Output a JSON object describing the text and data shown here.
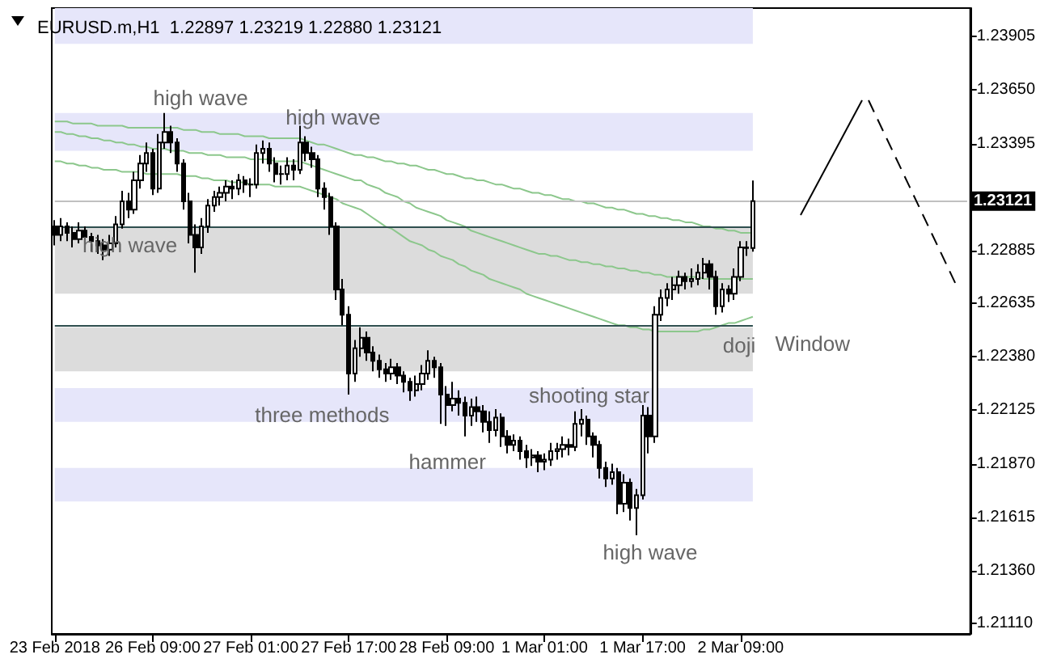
{
  "chart_data": {
    "type": "candlestick",
    "title": "EURUSD.m,H1  1.22897 1.23219 1.22880 1.23121",
    "categories": [
      "23 Feb 2018",
      null,
      null,
      null,
      null,
      null,
      null,
      null,
      null,
      null,
      null,
      null,
      null,
      null,
      null,
      null,
      "26 Feb 09:00",
      null,
      null,
      null,
      null,
      null,
      null,
      null,
      null,
      null,
      null,
      null,
      null,
      null,
      null,
      null,
      "27 Feb 01:00",
      null,
      null,
      null,
      null,
      null,
      null,
      null,
      null,
      null,
      null,
      null,
      null,
      null,
      null,
      null,
      "27 Feb 17:00",
      null,
      null,
      null,
      null,
      null,
      null,
      null,
      null,
      null,
      null,
      null,
      null,
      null,
      null,
      null,
      "28 Feb 09:00",
      null,
      null,
      null,
      null,
      null,
      null,
      null,
      null,
      null,
      null,
      null,
      null,
      null,
      null,
      null,
      "1 Mar 01:00",
      null,
      null,
      null,
      null,
      null,
      null,
      null,
      null,
      null,
      null,
      null,
      null,
      null,
      null,
      null,
      "1 Mar 17:00",
      null,
      null,
      null,
      null,
      null,
      null,
      null,
      null,
      null,
      null,
      null,
      null,
      null,
      null,
      null,
      "2 Mar 09:00",
      null,
      null,
      null,
      null,
      null,
      null,
      null,
      null,
      null,
      null,
      null,
      null,
      null,
      null,
      null,
      null,
      null,
      null,
      null,
      null,
      null,
      null,
      null,
      null,
      null,
      null,
      null,
      null,
      null,
      null,
      null,
      null,
      null,
      null,
      null,
      null,
      null
    ],
    "ohlc": [
      [
        1.23,
        1.2303,
        1.2291,
        1.2296
      ],
      [
        1.2296,
        1.2304,
        1.2293,
        1.23
      ],
      [
        1.23,
        1.2302,
        1.2293,
        1.2297
      ],
      [
        1.2297,
        1.23,
        1.229,
        1.2294
      ],
      [
        1.2294,
        1.2302,
        1.2292,
        1.2298
      ],
      [
        1.2298,
        1.23,
        1.2291,
        1.2295
      ],
      [
        1.2295,
        1.2297,
        1.2288,
        1.2293
      ],
      [
        1.2293,
        1.2296,
        1.2287,
        1.2291
      ],
      [
        1.2291,
        1.2294,
        1.2284,
        1.2289
      ],
      [
        1.2289,
        1.2296,
        1.2286,
        1.2292
      ],
      [
        1.2292,
        1.2305,
        1.229,
        1.2301
      ],
      [
        1.2301,
        1.2317,
        1.2299,
        1.2312
      ],
      [
        1.2312,
        1.2316,
        1.2304,
        1.2308
      ],
      [
        1.2308,
        1.2326,
        1.2306,
        1.2322
      ],
      [
        1.2322,
        1.2334,
        1.2318,
        1.233
      ],
      [
        1.233,
        1.234,
        1.2326,
        1.2335
      ],
      [
        1.2335,
        1.2337,
        1.2315,
        1.2318
      ],
      [
        1.2318,
        1.2344,
        1.2316,
        1.234
      ],
      [
        1.234,
        1.2354,
        1.2337,
        1.2345
      ],
      [
        1.2345,
        1.2348,
        1.2335,
        1.234
      ],
      [
        1.234,
        1.2342,
        1.2326,
        1.233
      ],
      [
        1.233,
        1.2332,
        1.2308,
        1.2312
      ],
      [
        1.2312,
        1.2316,
        1.2292,
        1.2296
      ],
      [
        1.2296,
        1.2301,
        1.2278,
        1.229
      ],
      [
        1.229,
        1.2304,
        1.2287,
        1.23
      ],
      [
        1.23,
        1.2313,
        1.2297,
        1.231
      ],
      [
        1.231,
        1.2317,
        1.2307,
        1.2314
      ],
      [
        1.2314,
        1.2319,
        1.231,
        1.2316
      ],
      [
        1.2316,
        1.2322,
        1.2312,
        1.2319
      ],
      [
        1.2319,
        1.2322,
        1.2313,
        1.2318
      ],
      [
        1.2318,
        1.2325,
        1.2315,
        1.2322
      ],
      [
        1.2322,
        1.2324,
        1.2316,
        1.232
      ],
      [
        1.232,
        1.2323,
        1.2314,
        1.232
      ],
      [
        1.232,
        1.2339,
        1.2318,
        1.2335
      ],
      [
        1.2335,
        1.2341,
        1.233,
        1.2337
      ],
      [
        1.2337,
        1.234,
        1.2326,
        1.233
      ],
      [
        1.233,
        1.2333,
        1.2321,
        1.2325
      ],
      [
        1.2325,
        1.2329,
        1.232,
        1.2325
      ],
      [
        1.2325,
        1.2333,
        1.2322,
        1.2329
      ],
      [
        1.2329,
        1.2332,
        1.2322,
        1.2327
      ],
      [
        1.2327,
        1.2348,
        1.2325,
        1.234
      ],
      [
        1.234,
        1.2343,
        1.2331,
        1.2335
      ],
      [
        1.2335,
        1.2338,
        1.2328,
        1.2332
      ],
      [
        1.2332,
        1.2334,
        1.2314,
        1.2318
      ],
      [
        1.2318,
        1.2321,
        1.2308,
        1.2314
      ],
      [
        1.2314,
        1.2316,
        1.2296,
        1.23
      ],
      [
        1.23,
        1.2302,
        1.2265,
        1.227
      ],
      [
        1.227,
        1.2275,
        1.2253,
        1.2258
      ],
      [
        1.2258,
        1.2262,
        1.222,
        1.223
      ],
      [
        1.223,
        1.2246,
        1.2226,
        1.2242
      ],
      [
        1.2242,
        1.2252,
        1.2238,
        1.2247
      ],
      [
        1.2247,
        1.225,
        1.2236,
        1.224
      ],
      [
        1.224,
        1.2243,
        1.2231,
        1.2236
      ],
      [
        1.2236,
        1.2239,
        1.2228,
        1.2232
      ],
      [
        1.2232,
        1.2235,
        1.2226,
        1.223
      ],
      [
        1.223,
        1.2237,
        1.2227,
        1.2233
      ],
      [
        1.2233,
        1.2235,
        1.2225,
        1.2229
      ],
      [
        1.2229,
        1.2231,
        1.2221,
        1.2226
      ],
      [
        1.2226,
        1.2228,
        1.2217,
        1.2222
      ],
      [
        1.2222,
        1.2229,
        1.2219,
        1.2225
      ],
      [
        1.2225,
        1.2234,
        1.2222,
        1.223
      ],
      [
        1.223,
        1.2241,
        1.2227,
        1.2236
      ],
      [
        1.2236,
        1.2238,
        1.2228,
        1.2233
      ],
      [
        1.2233,
        1.2235,
        1.2206,
        1.222
      ],
      [
        1.222,
        1.2224,
        1.2205,
        1.2215
      ],
      [
        1.2215,
        1.2226,
        1.2212,
        1.2218
      ],
      [
        1.2218,
        1.2222,
        1.221,
        1.2216
      ],
      [
        1.2216,
        1.2219,
        1.22,
        1.221
      ],
      [
        1.221,
        1.2218,
        1.2205,
        1.2214
      ],
      [
        1.2214,
        1.2219,
        1.2207,
        1.2212
      ],
      [
        1.2212,
        1.2215,
        1.2202,
        1.2207
      ],
      [
        1.2207,
        1.2212,
        1.2197,
        1.2203
      ],
      [
        1.2203,
        1.2213,
        1.22,
        1.2209
      ],
      [
        1.2209,
        1.2211,
        1.2195,
        1.22
      ],
      [
        1.22,
        1.2203,
        1.2192,
        1.2196
      ],
      [
        1.2196,
        1.2201,
        1.2193,
        1.2198
      ],
      [
        1.2198,
        1.22,
        1.2189,
        1.2193
      ],
      [
        1.2193,
        1.2196,
        1.2185,
        1.219
      ],
      [
        1.219,
        1.2194,
        1.2186,
        1.2191
      ],
      [
        1.2191,
        1.2193,
        1.2183,
        1.2188
      ],
      [
        1.2188,
        1.2192,
        1.2184,
        1.2189
      ],
      [
        1.2189,
        1.2197,
        1.2186,
        1.2193
      ],
      [
        1.2193,
        1.2197,
        1.2189,
        1.2194
      ],
      [
        1.2194,
        1.22,
        1.219,
        1.2196
      ],
      [
        1.2196,
        1.2199,
        1.2191,
        1.2195
      ],
      [
        1.2195,
        1.2212,
        1.2193,
        1.2206
      ],
      [
        1.2206,
        1.2213,
        1.22,
        1.2208
      ],
      [
        1.2208,
        1.221,
        1.2196,
        1.22
      ],
      [
        1.22,
        1.2202,
        1.219,
        1.2196
      ],
      [
        1.2196,
        1.2198,
        1.218,
        1.2185
      ],
      [
        1.2185,
        1.2188,
        1.2176,
        1.218
      ],
      [
        1.218,
        1.2187,
        1.2177,
        1.2183
      ],
      [
        1.2183,
        1.2185,
        1.2163,
        1.2168
      ],
      [
        1.2168,
        1.2182,
        1.2164,
        1.2178
      ],
      [
        1.2178,
        1.218,
        1.216,
        1.2166
      ],
      [
        1.2166,
        1.2175,
        1.2153,
        1.2172
      ],
      [
        1.2172,
        1.2215,
        1.217,
        1.221
      ],
      [
        1.221,
        1.2214,
        1.2192,
        1.22
      ],
      [
        1.22,
        1.2262,
        1.2197,
        1.2258
      ],
      [
        1.2258,
        1.227,
        1.2255,
        1.2266
      ],
      [
        1.2266,
        1.2273,
        1.2262,
        1.227
      ],
      [
        1.227,
        1.2276,
        1.2265,
        1.2272
      ],
      [
        1.2272,
        1.2279,
        1.2268,
        1.2276
      ],
      [
        1.2276,
        1.2278,
        1.227,
        1.2274
      ],
      [
        1.2274,
        1.228,
        1.2271,
        1.2275
      ],
      [
        1.2275,
        1.2282,
        1.2272,
        1.2278
      ],
      [
        1.2278,
        1.2285,
        1.2275,
        1.2282
      ],
      [
        1.2282,
        1.2284,
        1.227,
        1.2276
      ],
      [
        1.2276,
        1.2279,
        1.2258,
        1.2262
      ],
      [
        1.2262,
        1.2273,
        1.2259,
        1.227
      ],
      [
        1.227,
        1.2272,
        1.2264,
        1.2268
      ],
      [
        1.2268,
        1.228,
        1.2265,
        1.2276
      ],
      [
        1.2276,
        1.2293,
        1.2274,
        1.229
      ],
      [
        1.229,
        1.2293,
        1.2286,
        1.22897
      ],
      [
        1.22897,
        1.23219,
        1.2288,
        1.23121
      ],
      null,
      null,
      null,
      null,
      null,
      null,
      null,
      null,
      null,
      null,
      null,
      null,
      null,
      null,
      null,
      null,
      null,
      null,
      null,
      null,
      null,
      null,
      null,
      null,
      null,
      null,
      null,
      null,
      null,
      null,
      null,
      null,
      null,
      null,
      null
    ],
    "series": [
      {
        "type": "line",
        "color": "#8cc78c",
        "values": [
          1.235,
          1.235,
          1.235,
          1.2349,
          1.2349,
          1.2349,
          1.2349,
          1.2348,
          1.2348,
          1.2348,
          1.2348,
          1.2348,
          1.2347,
          1.2347,
          1.2347,
          1.2347,
          1.2347,
          1.2347,
          1.2347,
          1.2347,
          1.2347,
          1.2346,
          1.2346,
          1.2346,
          1.2345,
          1.2345,
          1.2345,
          1.2344,
          1.2344,
          1.2344,
          1.2344,
          1.2343,
          1.2343,
          1.2343,
          1.2343,
          1.2342,
          1.2342,
          1.2342,
          1.2342,
          1.2342,
          1.2342,
          1.2341,
          1.234,
          1.2339,
          1.2339,
          1.2338,
          1.2337,
          1.2336,
          1.2335,
          1.2334,
          1.2334,
          1.2333,
          1.2333,
          1.2332,
          1.2331,
          1.2331,
          1.233,
          1.233,
          1.2329,
          1.2329,
          1.2328,
          1.2327,
          1.2327,
          1.2326,
          1.2325,
          1.2325,
          1.2324,
          1.2323,
          1.2323,
          1.2322,
          1.2322,
          1.2321,
          1.232,
          1.232,
          1.2319,
          1.2318,
          1.2318,
          1.2317,
          1.2316,
          1.2316,
          1.2315,
          1.2315,
          1.2314,
          1.2313,
          1.2313,
          1.2312,
          1.2312,
          1.2311,
          1.2311,
          1.231,
          1.2309,
          1.2309,
          1.2308,
          1.2308,
          1.2307,
          1.2306,
          1.2306,
          1.2305,
          1.2305,
          1.2304,
          1.2304,
          1.2303,
          1.2303,
          1.2302,
          1.2302,
          1.2301,
          1.23,
          1.23,
          1.2299,
          1.2299,
          1.2298,
          1.2298,
          1.2297,
          1.2297,
          1.2297,
          null,
          null,
          null,
          null,
          null,
          null,
          null,
          null,
          null,
          null,
          null,
          null,
          null,
          null,
          null,
          null,
          null,
          null,
          null,
          null,
          null,
          null,
          null,
          null,
          null,
          null,
          null,
          null,
          null,
          null,
          null,
          null,
          null,
          null,
          null
        ]
      },
      {
        "type": "line",
        "color": "#8cc78c",
        "values": [
          1.2345,
          1.2345,
          1.2344,
          1.2344,
          1.2343,
          1.2343,
          1.2342,
          1.2342,
          1.2341,
          1.2341,
          1.234,
          1.234,
          1.2339,
          1.2339,
          1.2338,
          1.2338,
          1.2337,
          1.2337,
          1.2337,
          1.2336,
          1.2336,
          1.2336,
          1.2335,
          1.2335,
          1.2335,
          1.2334,
          1.2334,
          1.2334,
          1.2333,
          1.2333,
          1.2333,
          1.2333,
          1.2332,
          1.2332,
          1.2332,
          1.2332,
          1.2331,
          1.2331,
          1.2331,
          1.2331,
          1.2331,
          1.233,
          1.2329,
          1.2328,
          1.2327,
          1.2326,
          1.2325,
          1.2324,
          1.2323,
          1.2322,
          1.2322,
          1.232,
          1.2319,
          1.2318,
          1.2316,
          1.2315,
          1.2314,
          1.2312,
          1.2311,
          1.2309,
          1.2308,
          1.2307,
          1.2306,
          1.2305,
          1.2303,
          1.2302,
          1.2301,
          1.23,
          1.2298,
          1.2297,
          1.2296,
          1.2295,
          1.2294,
          1.2293,
          1.2292,
          1.2291,
          1.229,
          1.2289,
          1.2288,
          1.2287,
          1.2287,
          1.2286,
          1.2286,
          1.2285,
          1.2284,
          1.2284,
          1.2283,
          1.2283,
          1.2282,
          1.2282,
          1.2281,
          1.2281,
          1.228,
          1.228,
          1.2279,
          1.2279,
          1.2278,
          1.2278,
          1.2277,
          1.2277,
          1.2276,
          1.2276,
          1.2276,
          1.2276,
          1.2276,
          1.2276,
          1.2275,
          1.2275,
          1.2275,
          1.2275,
          1.2275,
          1.2275,
          1.2275,
          1.2275,
          1.2275,
          null,
          null,
          null,
          null,
          null,
          null,
          null,
          null,
          null,
          null,
          null,
          null,
          null,
          null,
          null,
          null,
          null,
          null,
          null,
          null,
          null,
          null,
          null,
          null,
          null,
          null,
          null,
          null,
          null,
          null,
          null,
          null,
          null,
          null,
          null
        ]
      },
      {
        "type": "line",
        "color": "#8cc78c",
        "values": [
          1.2331,
          1.2331,
          1.233,
          1.233,
          1.2329,
          1.2329,
          1.2328,
          1.2328,
          1.2327,
          1.2327,
          1.2327,
          1.2326,
          1.2326,
          1.2326,
          1.2326,
          1.2325,
          1.2325,
          1.2325,
          1.2325,
          1.2325,
          1.2325,
          1.2324,
          1.2324,
          1.2324,
          1.2323,
          1.2323,
          1.2322,
          1.2322,
          1.2322,
          1.2321,
          1.2321,
          1.2321,
          1.232,
          1.232,
          1.232,
          1.232,
          1.2319,
          1.2319,
          1.2319,
          1.2319,
          1.2319,
          1.2318,
          1.2317,
          1.2316,
          1.2315,
          1.2314,
          1.2313,
          1.2311,
          1.231,
          1.2309,
          1.2308,
          1.2306,
          1.2304,
          1.2302,
          1.23,
          1.2299,
          1.2297,
          1.2295,
          1.2293,
          1.2292,
          1.2291,
          1.2289,
          1.2288,
          1.2286,
          1.2285,
          1.2284,
          1.2282,
          1.2281,
          1.2279,
          1.2278,
          1.2277,
          1.2275,
          1.2274,
          1.2273,
          1.2272,
          1.2271,
          1.227,
          1.2268,
          1.2267,
          1.2266,
          1.2265,
          1.2264,
          1.2263,
          1.2262,
          1.2261,
          1.226,
          1.2259,
          1.2258,
          1.2257,
          1.2256,
          1.2255,
          1.2254,
          1.2253,
          1.2253,
          1.2252,
          1.2252,
          1.2251,
          1.2251,
          1.225,
          1.225,
          1.225,
          1.225,
          1.225,
          1.225,
          1.225,
          1.225,
          1.2251,
          1.2251,
          1.2252,
          1.2253,
          1.2254,
          1.2254,
          1.2255,
          1.2256,
          1.2257,
          null,
          null,
          null,
          null,
          null,
          null,
          null,
          null,
          null,
          null,
          null,
          null,
          null,
          null,
          null,
          null,
          null,
          null,
          null,
          null,
          null,
          null,
          null,
          null,
          null,
          null,
          null,
          null,
          null,
          null,
          null,
          null,
          null,
          null,
          null
        ]
      }
    ],
    "ylim": [
      1.2106,
      1.2404
    ],
    "yticks": [
      {
        "value": 1.2111,
        "label": "1.21110"
      },
      {
        "value": 1.2136,
        "label": "1.21360"
      },
      {
        "value": 1.21615,
        "label": "1.21615"
      },
      {
        "value": 1.2187,
        "label": "1.21870"
      },
      {
        "value": 1.22125,
        "label": "1.22125"
      },
      {
        "value": 1.2238,
        "label": "1.22380"
      },
      {
        "value": 1.22635,
        "label": "1.22635"
      },
      {
        "value": 1.22885,
        "label": "1.22885"
      },
      {
        "value": 1.23395,
        "label": "1.23395"
      },
      {
        "value": 1.2365,
        "label": "1.23650"
      },
      {
        "value": 1.23905,
        "label": "1.23905"
      }
    ],
    "bands": [
      {
        "axis": "y",
        "from": 1.2387,
        "to": 1.2404,
        "color": "#e6e6fa"
      },
      {
        "axis": "y",
        "from": 1.2336,
        "to": 1.2354,
        "color": "#e6e6fa"
      },
      {
        "axis": "y",
        "from": 1.2268,
        "to": 1.23,
        "color": "#dcdcdc"
      },
      {
        "axis": "y",
        "from": 1.2231,
        "to": 1.2252,
        "color": "#dcdcdc"
      },
      {
        "axis": "y",
        "from": 1.2207,
        "to": 1.2223,
        "color": "#e6e6fa"
      },
      {
        "axis": "y",
        "from": 1.2169,
        "to": 1.2185,
        "color": "#e6e6fa"
      }
    ],
    "ref_lines": [
      {
        "axis": "y",
        "value": 1.23,
        "color": "#2f4f4f"
      },
      {
        "axis": "y",
        "value": 1.2253,
        "color": "#2f4f4f"
      },
      {
        "axis": "y",
        "value": 1.23121,
        "label": "1.23121",
        "color": "#c0c0c0"
      }
    ],
    "annotations": [
      "high wave",
      "high wave",
      "high wave",
      "three methods",
      "shooting star",
      "hammer",
      "high wave",
      "doji",
      "Window"
    ]
  }
}
